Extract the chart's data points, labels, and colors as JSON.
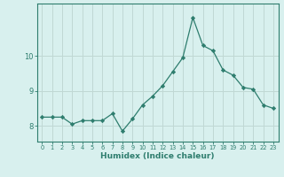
{
  "x": [
    0,
    1,
    2,
    3,
    4,
    5,
    6,
    7,
    8,
    9,
    10,
    11,
    12,
    13,
    14,
    15,
    16,
    17,
    18,
    19,
    20,
    21,
    22,
    23
  ],
  "y": [
    8.25,
    8.25,
    8.25,
    8.05,
    8.15,
    8.15,
    8.15,
    8.35,
    7.85,
    8.2,
    8.6,
    8.85,
    9.15,
    9.55,
    9.95,
    11.1,
    10.3,
    10.15,
    9.6,
    9.45,
    9.1,
    9.05,
    8.6,
    8.5
  ],
  "line_color": "#2e7d6e",
  "marker": "D",
  "marker_size": 2.2,
  "bg_color": "#d8f0ee",
  "grid_color": "#c0d8d4",
  "axis_color": "#2e7d6e",
  "xlabel": "Humidex (Indice chaleur)",
  "xlabel_color": "#2e7d6e",
  "tick_color": "#2e7d6e",
  "xlim": [
    -0.5,
    23.5
  ],
  "ylim": [
    7.55,
    11.5
  ],
  "yticks": [
    8,
    9,
    10
  ],
  "xticks": [
    0,
    1,
    2,
    3,
    4,
    5,
    6,
    7,
    8,
    9,
    10,
    11,
    12,
    13,
    14,
    15,
    16,
    17,
    18,
    19,
    20,
    21,
    22,
    23
  ]
}
